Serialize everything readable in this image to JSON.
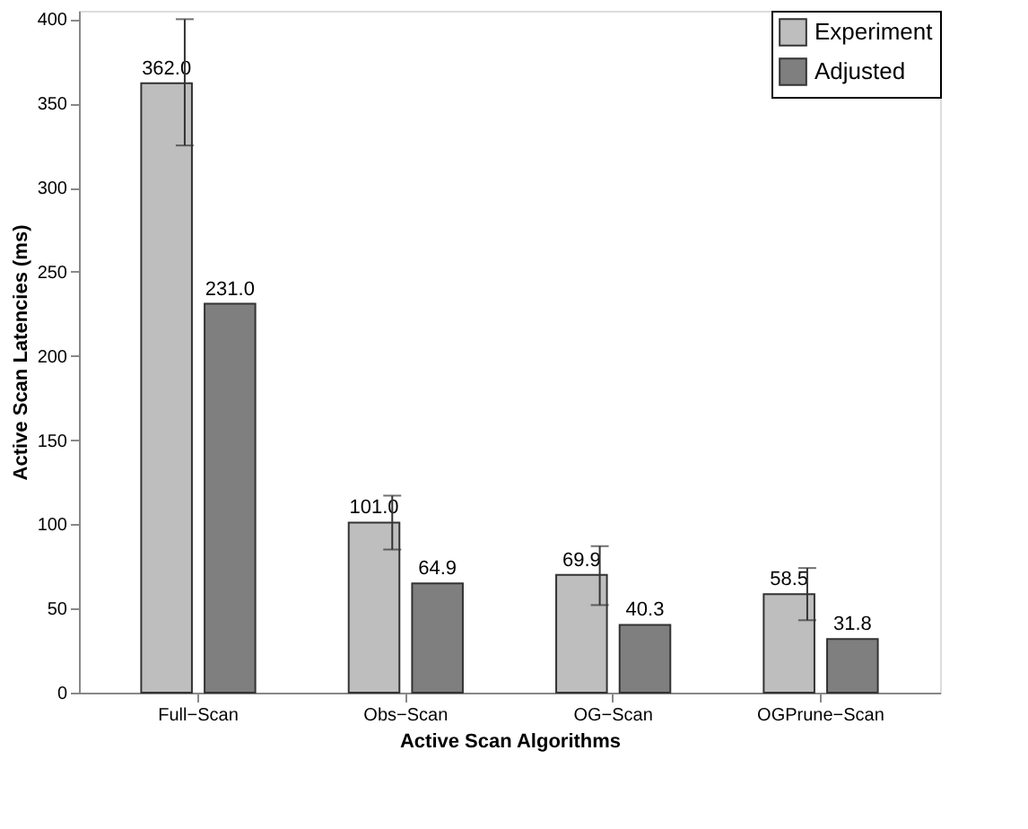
{
  "chart_data": {
    "type": "bar",
    "xlabel": "Active Scan Algorithms",
    "ylabel": "Active Scan Latencies (ms)",
    "categories": [
      "Full−Scan",
      "Obs−Scan",
      "OG−Scan",
      "OGPrune−Scan"
    ],
    "series": [
      {
        "name": "Experiment",
        "color": "#bebebe",
        "values": [
          362.0,
          101.0,
          69.9,
          58.5
        ],
        "value_labels": [
          "362.0",
          "101.0",
          "69.9",
          "58.5"
        ],
        "errors": [
          [
            325,
            400
          ],
          [
            85,
            117
          ],
          [
            52,
            87
          ],
          [
            43,
            74
          ]
        ]
      },
      {
        "name": "Adjusted",
        "color": "#7f7f7f",
        "values": [
          231.0,
          64.9,
          40.3,
          31.8
        ],
        "value_labels": [
          "231.0",
          "64.9",
          "40.3",
          "31.8"
        ]
      }
    ],
    "ylim": [
      0,
      405
    ],
    "yticks": [
      0,
      50,
      100,
      150,
      200,
      250,
      300,
      350,
      400
    ],
    "grid": false,
    "legend": "top right"
  }
}
